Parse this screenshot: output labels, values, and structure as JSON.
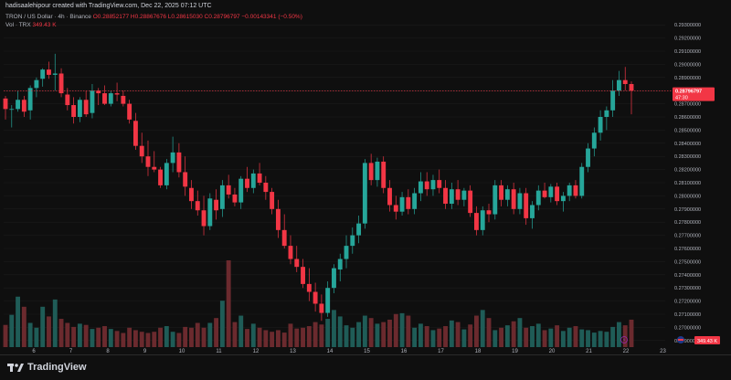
{
  "header": {
    "credit": "hadisaalehipour created with TradingView.com, Dec 22, 2025 07:12 UTC",
    "symbol": "TRON / US Dollar · 4h · Binance",
    "ohlc": "O0.28852177  H0.28867676  L0.28615030  C0.28796797  −0.00143341 (−0.50%)",
    "volume_label": "Vol · TRX",
    "volume_value": "349.43 K"
  },
  "price_badge": {
    "price": "0.28796797",
    "countdown": "47:30"
  },
  "volume_badge": "349.43 K",
  "footer": {
    "brand": "TradingView",
    "badge_icon": "flag-icon"
  },
  "colors": {
    "up": "#26a69a",
    "down": "#f23645",
    "background": "#0f0f0f"
  },
  "chart_data": {
    "type": "candlestick",
    "yticks": [
      "0.29300000",
      "0.29200000",
      "0.29100000",
      "0.29000000",
      "0.28900000",
      "0.28800000",
      "0.28700000",
      "0.28600000",
      "0.28500000",
      "0.28400000",
      "0.28300000",
      "0.28200000",
      "0.28100000",
      "0.28000000",
      "0.27900000",
      "0.27800000",
      "0.27700000",
      "0.27600000",
      "0.27500000",
      "0.27400000",
      "0.27300000",
      "0.27200000",
      "0.27100000",
      "0.27000000",
      "0.26900000"
    ],
    "ylim": [
      0.2685,
      0.2935
    ],
    "xticks": [
      "6",
      "7",
      "8",
      "9",
      "10",
      "11",
      "12",
      "13",
      "14",
      "15",
      "16",
      "17",
      "18",
      "19",
      "20",
      "21",
      "22",
      "23"
    ],
    "current_price": 0.28796797,
    "candles": [
      [
        0.2874,
        0.2876,
        0.2858,
        0.2866
      ],
      [
        0.2866,
        0.2869,
        0.2852,
        0.2866
      ],
      [
        0.2866,
        0.288,
        0.2864,
        0.2873
      ],
      [
        0.2873,
        0.2876,
        0.286,
        0.2864
      ],
      [
        0.2865,
        0.2884,
        0.2858,
        0.2882
      ],
      [
        0.2882,
        0.289,
        0.2875,
        0.2888
      ],
      [
        0.2889,
        0.2897,
        0.2883,
        0.2896
      ],
      [
        0.2896,
        0.2902,
        0.2889,
        0.2892
      ],
      [
        0.2892,
        0.2908,
        0.288,
        0.2893
      ],
      [
        0.2893,
        0.2897,
        0.2875,
        0.2878
      ],
      [
        0.2877,
        0.2882,
        0.2865,
        0.2869
      ],
      [
        0.2869,
        0.2875,
        0.2855,
        0.286
      ],
      [
        0.286,
        0.2875,
        0.2856,
        0.2873
      ],
      [
        0.2873,
        0.288,
        0.286,
        0.2862
      ],
      [
        0.2863,
        0.2885,
        0.2859,
        0.288
      ],
      [
        0.288,
        0.2882,
        0.2869,
        0.2878
      ],
      [
        0.2878,
        0.2884,
        0.2869,
        0.287
      ],
      [
        0.287,
        0.288,
        0.2868,
        0.2878
      ],
      [
        0.2878,
        0.2886,
        0.2872,
        0.2877
      ],
      [
        0.2876,
        0.288,
        0.2868,
        0.287
      ],
      [
        0.287,
        0.2873,
        0.2855,
        0.2858
      ],
      [
        0.2857,
        0.2863,
        0.2835,
        0.2838
      ],
      [
        0.2838,
        0.2848,
        0.2825,
        0.283
      ],
      [
        0.283,
        0.2842,
        0.2815,
        0.2822
      ],
      [
        0.2822,
        0.2834,
        0.2818,
        0.282
      ],
      [
        0.282,
        0.2822,
        0.2806,
        0.2808
      ],
      [
        0.2808,
        0.2828,
        0.2805,
        0.2825
      ],
      [
        0.2825,
        0.2845,
        0.2818,
        0.2833
      ],
      [
        0.2833,
        0.284,
        0.2814,
        0.2818
      ],
      [
        0.2818,
        0.283,
        0.28,
        0.2807
      ],
      [
        0.2806,
        0.2812,
        0.279,
        0.2796
      ],
      [
        0.2796,
        0.2804,
        0.2785,
        0.2789
      ],
      [
        0.2789,
        0.28,
        0.277,
        0.2777
      ],
      [
        0.2777,
        0.2802,
        0.2774,
        0.2798
      ],
      [
        0.2797,
        0.2805,
        0.2782,
        0.2789
      ],
      [
        0.279,
        0.2812,
        0.2784,
        0.2808
      ],
      [
        0.2808,
        0.2816,
        0.2798,
        0.2801
      ],
      [
        0.2801,
        0.2806,
        0.2792,
        0.2795
      ],
      [
        0.2795,
        0.2815,
        0.279,
        0.2813
      ],
      [
        0.2813,
        0.2822,
        0.2803,
        0.2806
      ],
      [
        0.2806,
        0.282,
        0.2802,
        0.2817
      ],
      [
        0.2817,
        0.2825,
        0.2808,
        0.281
      ],
      [
        0.281,
        0.2815,
        0.2797,
        0.2803
      ],
      [
        0.2803,
        0.2806,
        0.2786,
        0.279
      ],
      [
        0.279,
        0.2797,
        0.2768,
        0.2774
      ],
      [
        0.2774,
        0.2786,
        0.276,
        0.2762
      ],
      [
        0.2762,
        0.277,
        0.2748,
        0.2752
      ],
      [
        0.2752,
        0.2762,
        0.2742,
        0.2746
      ],
      [
        0.2746,
        0.2752,
        0.273,
        0.2733
      ],
      [
        0.2733,
        0.2745,
        0.272,
        0.2727
      ],
      [
        0.2727,
        0.2734,
        0.2712,
        0.2718
      ],
      [
        0.2718,
        0.2725,
        0.2705,
        0.2711
      ],
      [
        0.2711,
        0.2735,
        0.2708,
        0.273
      ],
      [
        0.273,
        0.2748,
        0.2726,
        0.2745
      ],
      [
        0.2744,
        0.2756,
        0.2735,
        0.2752
      ],
      [
        0.2752,
        0.277,
        0.2745,
        0.2762
      ],
      [
        0.2762,
        0.2776,
        0.2756,
        0.277
      ],
      [
        0.277,
        0.2785,
        0.2764,
        0.2779
      ],
      [
        0.2779,
        0.2828,
        0.2775,
        0.2825
      ],
      [
        0.2825,
        0.2832,
        0.2808,
        0.2812
      ],
      [
        0.2812,
        0.2829,
        0.2807,
        0.2826
      ],
      [
        0.2826,
        0.283,
        0.2802,
        0.2806
      ],
      [
        0.2806,
        0.2812,
        0.2788,
        0.2793
      ],
      [
        0.2793,
        0.28,
        0.2782,
        0.2788
      ],
      [
        0.2788,
        0.2803,
        0.2785,
        0.2799
      ],
      [
        0.2799,
        0.2805,
        0.2786,
        0.279
      ],
      [
        0.279,
        0.2806,
        0.2786,
        0.2802
      ],
      [
        0.2802,
        0.2818,
        0.2796,
        0.2811
      ],
      [
        0.2811,
        0.2818,
        0.28,
        0.2805
      ],
      [
        0.2805,
        0.2816,
        0.28,
        0.2812
      ],
      [
        0.2812,
        0.282,
        0.2802,
        0.2806
      ],
      [
        0.2806,
        0.2812,
        0.279,
        0.2794
      ],
      [
        0.2794,
        0.281,
        0.279,
        0.2805
      ],
      [
        0.2805,
        0.2812,
        0.2793,
        0.2797
      ],
      [
        0.2797,
        0.2806,
        0.2792,
        0.2804
      ],
      [
        0.2804,
        0.2808,
        0.2784,
        0.2787
      ],
      [
        0.2787,
        0.2792,
        0.277,
        0.2774
      ],
      [
        0.2774,
        0.2792,
        0.277,
        0.2789
      ],
      [
        0.2789,
        0.2794,
        0.278,
        0.2786
      ],
      [
        0.2786,
        0.2812,
        0.2782,
        0.2808
      ],
      [
        0.2808,
        0.2812,
        0.2792,
        0.2797
      ],
      [
        0.2797,
        0.2808,
        0.2792,
        0.2805
      ],
      [
        0.2805,
        0.281,
        0.2786,
        0.279
      ],
      [
        0.279,
        0.2806,
        0.2786,
        0.2802
      ],
      [
        0.2802,
        0.2806,
        0.2778,
        0.2783
      ],
      [
        0.2783,
        0.2796,
        0.2775,
        0.2793
      ],
      [
        0.2793,
        0.2808,
        0.2789,
        0.2804
      ],
      [
        0.2804,
        0.281,
        0.2798,
        0.2799
      ],
      [
        0.2799,
        0.2809,
        0.2795,
        0.2807
      ],
      [
        0.2807,
        0.281,
        0.2793,
        0.2796
      ],
      [
        0.2796,
        0.2803,
        0.2788,
        0.28
      ],
      [
        0.28,
        0.281,
        0.2796,
        0.2808
      ],
      [
        0.2808,
        0.2812,
        0.2798,
        0.28
      ],
      [
        0.28,
        0.2825,
        0.2798,
        0.2822
      ],
      [
        0.2822,
        0.284,
        0.2818,
        0.2836
      ],
      [
        0.2836,
        0.2852,
        0.283,
        0.2848
      ],
      [
        0.2848,
        0.2865,
        0.2842,
        0.286
      ],
      [
        0.286,
        0.2868,
        0.285,
        0.2865
      ],
      [
        0.2865,
        0.2888,
        0.286,
        0.288
      ],
      [
        0.288,
        0.2895,
        0.2876,
        0.2888
      ],
      [
        0.2888,
        0.2898,
        0.288,
        0.2885
      ],
      [
        0.2885,
        0.2887,
        0.2862,
        0.288
      ]
    ],
    "volume": [
      55,
      80,
      125,
      100,
      60,
      48,
      100,
      76,
      118,
      70,
      60,
      50,
      58,
      55,
      45,
      48,
      52,
      45,
      40,
      35,
      48,
      42,
      38,
      35,
      38,
      48,
      52,
      38,
      35,
      50,
      48,
      60,
      48,
      60,
      72,
      115,
      215,
      62,
      78,
      45,
      58,
      48,
      42,
      38,
      42,
      36,
      58,
      46,
      48,
      52,
      62,
      56,
      70,
      92,
      76,
      54,
      48,
      62,
      78,
      72,
      58,
      62,
      68,
      82,
      84,
      78,
      48,
      58,
      52,
      42,
      46,
      52,
      66,
      62,
      44,
      56,
      78,
      92,
      72,
      42,
      48,
      54,
      64,
      72,
      48,
      52,
      58,
      42,
      46,
      54,
      40,
      48,
      52,
      44,
      42,
      36,
      40,
      38,
      50,
      62,
      54,
      68
    ]
  }
}
